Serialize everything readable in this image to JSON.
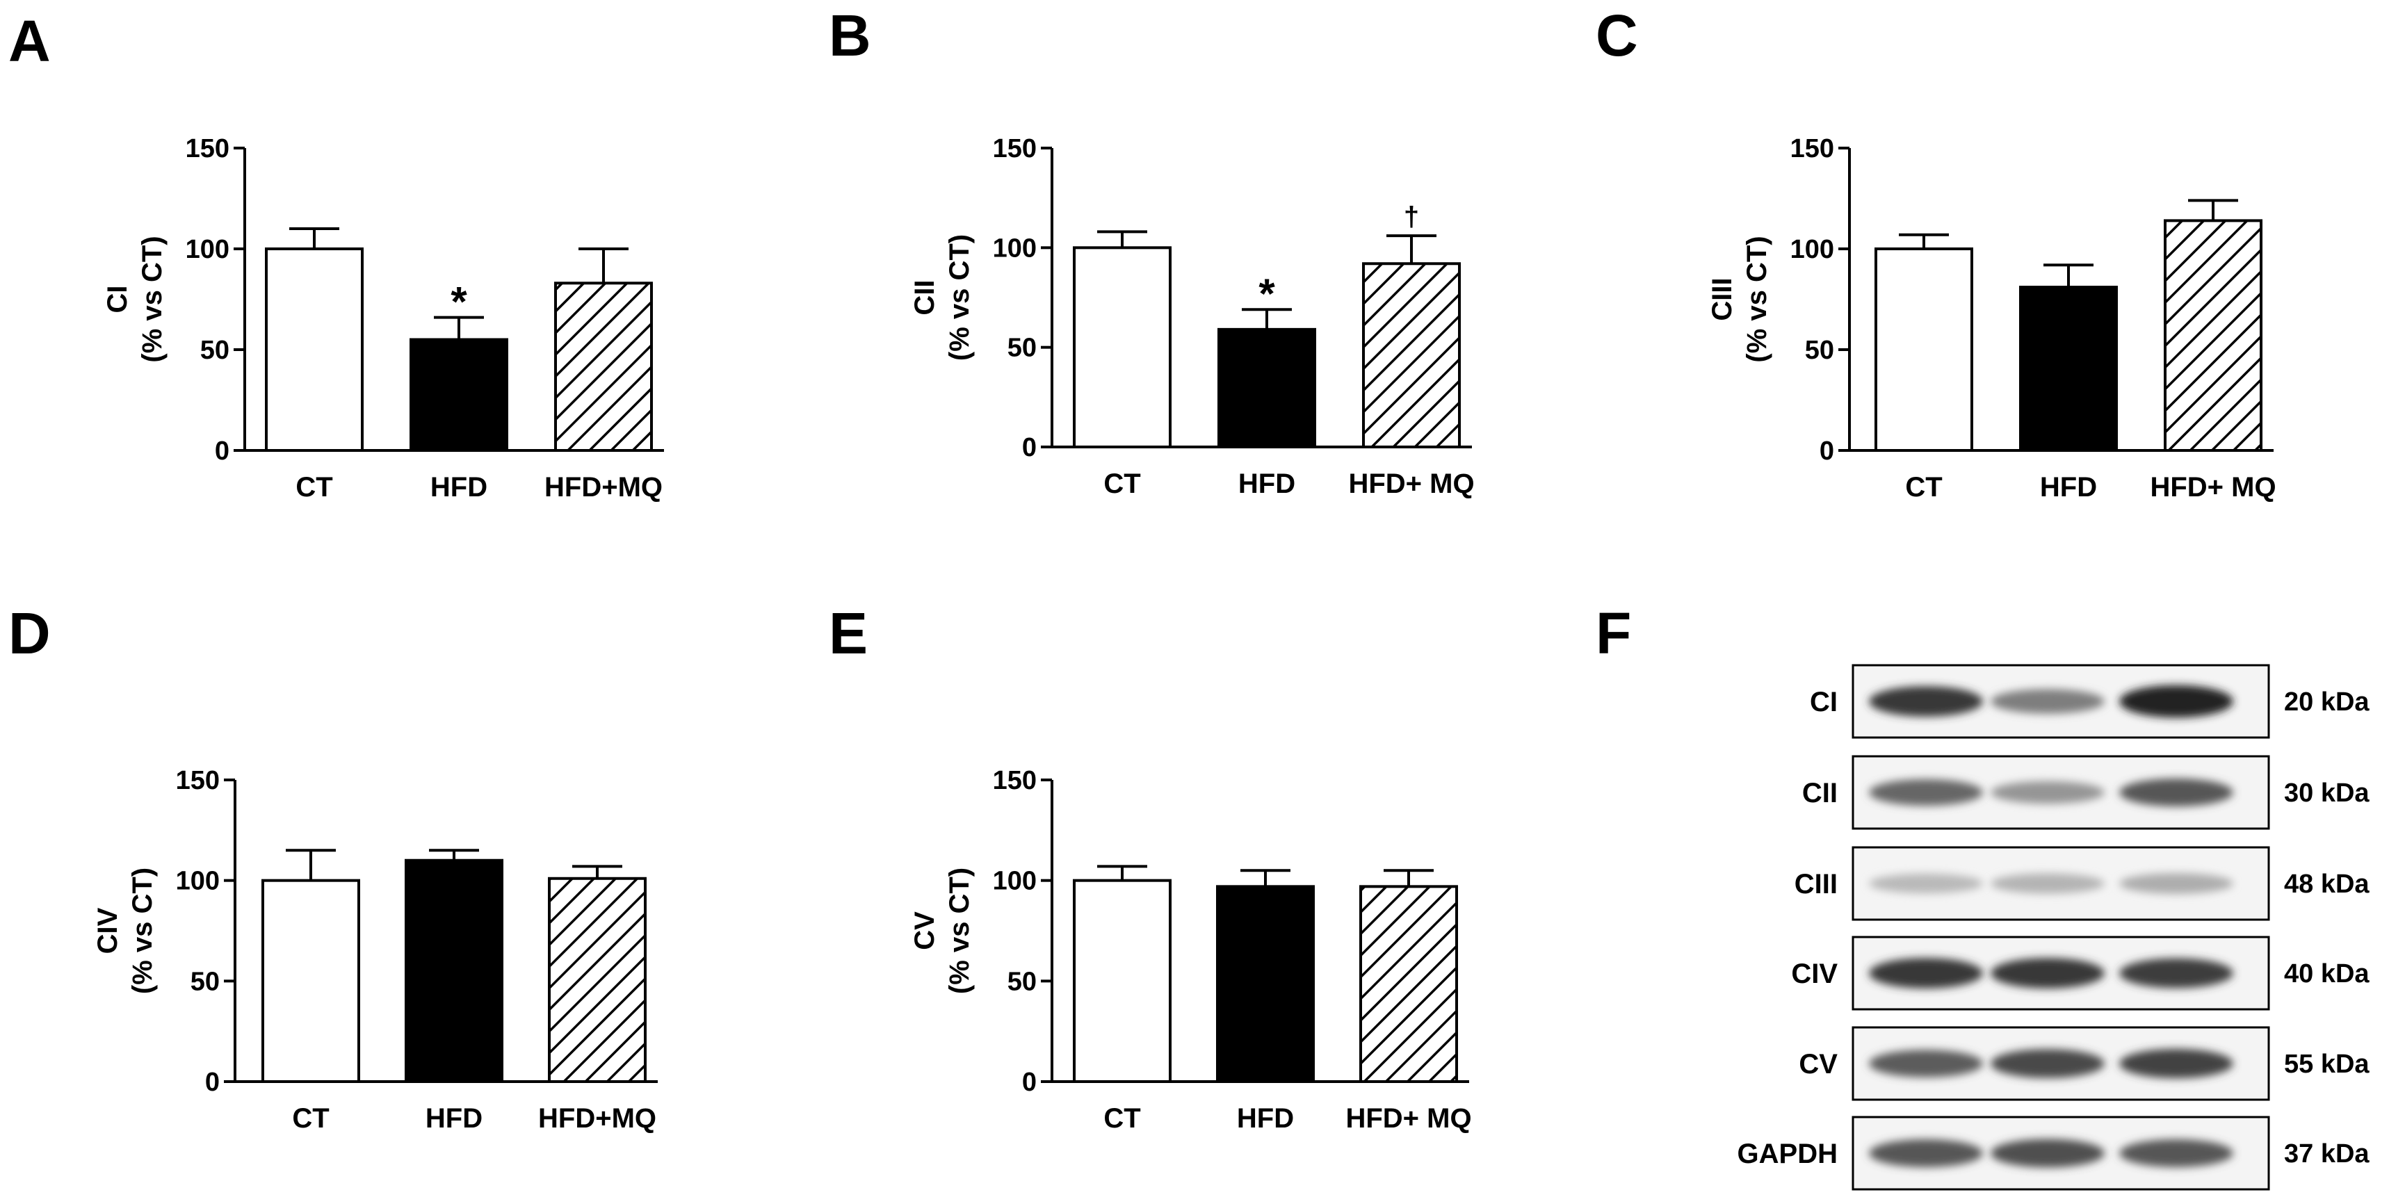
{
  "panels": {
    "A": "A",
    "B": "B",
    "C": "C",
    "D": "D",
    "E": "E",
    "F": "F"
  },
  "colors": {
    "CT": "#ffffff",
    "HFD": "#000000",
    "HFD_MQ": "hatched"
  },
  "chart_data": [
    {
      "panel": "A",
      "type": "bar",
      "categories": [
        "CT",
        "HFD",
        "HFD+MQ"
      ],
      "values": [
        100,
        55,
        83
      ],
      "errors": [
        10,
        11,
        17
      ],
      "annotations": [
        "",
        "*",
        ""
      ],
      "ylabel": [
        "CI",
        "(% vs CT)"
      ],
      "yticks": [
        0,
        50,
        100,
        150
      ],
      "ylim": [
        0,
        150
      ]
    },
    {
      "panel": "B",
      "type": "bar",
      "categories": [
        "CT",
        "HFD",
        "HFD+ MQ"
      ],
      "values": [
        100,
        59,
        92
      ],
      "errors": [
        8,
        10,
        14
      ],
      "annotations": [
        "",
        "*",
        "†"
      ],
      "ylabel": [
        "CII",
        "(% vs CT)"
      ],
      "yticks": [
        0,
        50,
        100,
        150
      ],
      "ylim": [
        0,
        150
      ]
    },
    {
      "panel": "C",
      "type": "bar",
      "categories": [
        "CT",
        "HFD",
        "HFD+ MQ"
      ],
      "values": [
        100,
        81,
        114
      ],
      "errors": [
        7,
        11,
        10
      ],
      "annotations": [
        "",
        "",
        ""
      ],
      "ylabel": [
        "CIII",
        "(% vs CT)"
      ],
      "yticks": [
        0,
        50,
        100,
        150
      ],
      "ylim": [
        0,
        150
      ]
    },
    {
      "panel": "D",
      "type": "bar",
      "categories": [
        "CT",
        "HFD",
        "HFD+MQ"
      ],
      "values": [
        100,
        110,
        101
      ],
      "errors": [
        15,
        5,
        6
      ],
      "annotations": [
        "",
        "",
        ""
      ],
      "ylabel": [
        "CIV",
        "(% vs CT)"
      ],
      "yticks": [
        0,
        50,
        100,
        150
      ],
      "ylim": [
        0,
        150
      ]
    },
    {
      "panel": "E",
      "type": "bar",
      "categories": [
        "CT",
        "HFD",
        "HFD+ MQ"
      ],
      "values": [
        100,
        97,
        97
      ],
      "errors": [
        7,
        8,
        8
      ],
      "annotations": [
        "",
        "",
        ""
      ],
      "ylabel": [
        "CV",
        "(% vs CT)"
      ],
      "yticks": [
        0,
        50,
        100,
        150
      ],
      "ylim": [
        0,
        150
      ]
    }
  ],
  "blot": {
    "rows": [
      {
        "label": "CI",
        "kda": "20 kDa",
        "intensity": [
          0.85,
          0.55,
          0.95
        ]
      },
      {
        "label": "CII",
        "kda": "30 kDa",
        "intensity": [
          0.65,
          0.45,
          0.72
        ]
      },
      {
        "label": "CIII",
        "kda": "48 kDa",
        "intensity": [
          0.3,
          0.32,
          0.35
        ]
      },
      {
        "label": "CIV",
        "kda": "40 kDa",
        "intensity": [
          0.85,
          0.85,
          0.82
        ]
      },
      {
        "label": "CV",
        "kda": "55 kDa",
        "intensity": [
          0.7,
          0.78,
          0.8
        ]
      },
      {
        "label": "GAPDH",
        "kda": "37 kDa",
        "intensity": [
          0.72,
          0.75,
          0.72
        ]
      }
    ]
  }
}
